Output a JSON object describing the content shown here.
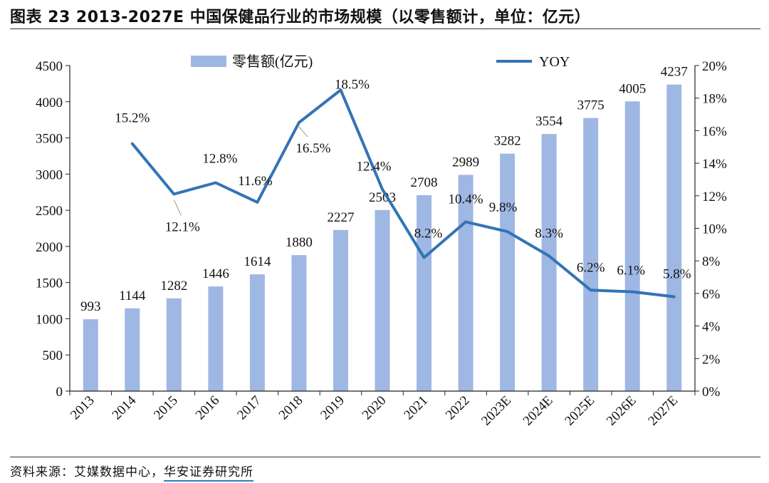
{
  "title": "图表 23 2013-2027E 中国保健品行业的市场规模（以零售额计，单位：亿元）",
  "source": {
    "prefix": "资料来源：艾媒数据中心，",
    "org": "华安证券研究所"
  },
  "chart_data": {
    "type": "bar",
    "title": "图表 23 2013-2027E 中国保健品行业的市场规模（以零售额计，单位：亿元）",
    "categories": [
      "2013",
      "2014",
      "2015",
      "2016",
      "2017",
      "2018",
      "2019",
      "2020",
      "2021",
      "2022",
      "2023E",
      "2024E",
      "2025E",
      "2026E",
      "2027E"
    ],
    "series": [
      {
        "name": "零售额(亿元)",
        "kind": "bar",
        "axis": "left",
        "color": "#9fb7e3",
        "values": [
          993,
          1144,
          1282,
          1446,
          1614,
          1880,
          2227,
          2503,
          2708,
          2989,
          3282,
          3554,
          3775,
          4005,
          4237
        ]
      },
      {
        "name": "YOY",
        "kind": "line",
        "axis": "right",
        "color": "#3374b4",
        "values": [
          null,
          15.2,
          12.1,
          12.8,
          11.6,
          16.5,
          18.5,
          12.4,
          8.2,
          10.4,
          9.8,
          8.3,
          6.2,
          6.1,
          5.8
        ],
        "labels": [
          "",
          "15.2%",
          "12.1%",
          "12.8%",
          "11.6%",
          "16.5%",
          "18.5%",
          "12.4%",
          "8.2%",
          "10.4%",
          "9.8%",
          "8.3%",
          "6.2%",
          "6.1%",
          "5.8%"
        ]
      }
    ],
    "ylim": [
      0,
      4500
    ],
    "yticks": [
      0,
      500,
      1000,
      1500,
      2000,
      2500,
      3000,
      3500,
      4000,
      4500
    ],
    "ylim_right": [
      0,
      20
    ],
    "yticks_right_labels": [
      "0%",
      "2%",
      "4%",
      "6%",
      "8%",
      "10%",
      "12%",
      "14%",
      "16%",
      "18%",
      "20%"
    ],
    "legend_position": "top",
    "grid": false
  }
}
